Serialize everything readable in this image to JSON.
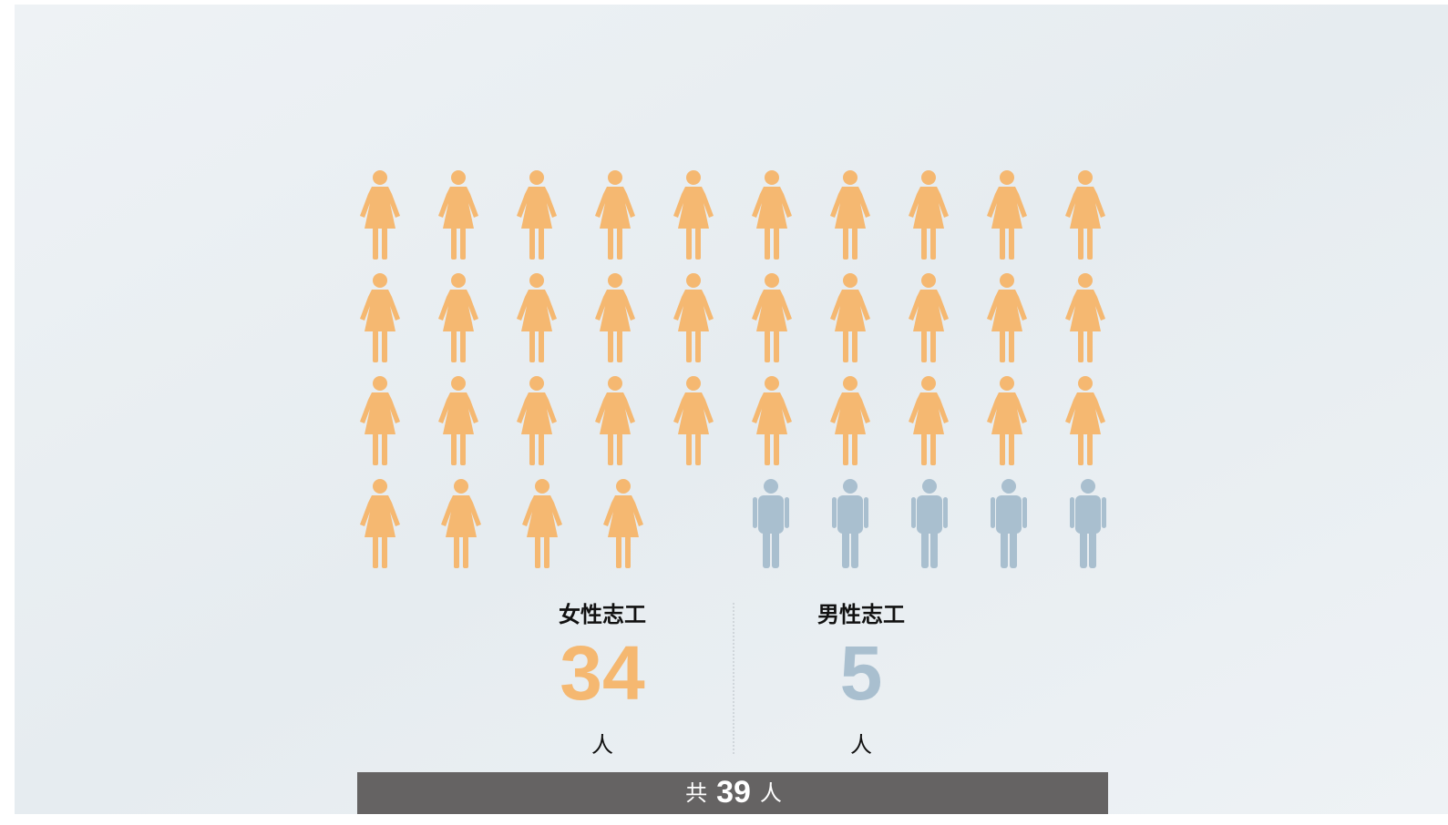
{
  "chart_data": {
    "type": "pictogram",
    "categories": [
      "女性志工",
      "男性志工"
    ],
    "values": [
      34,
      5
    ],
    "colors": [
      "#f5b871",
      "#a9bfcf"
    ],
    "unit": "人",
    "total_prefix": "共",
    "total": 39
  }
}
